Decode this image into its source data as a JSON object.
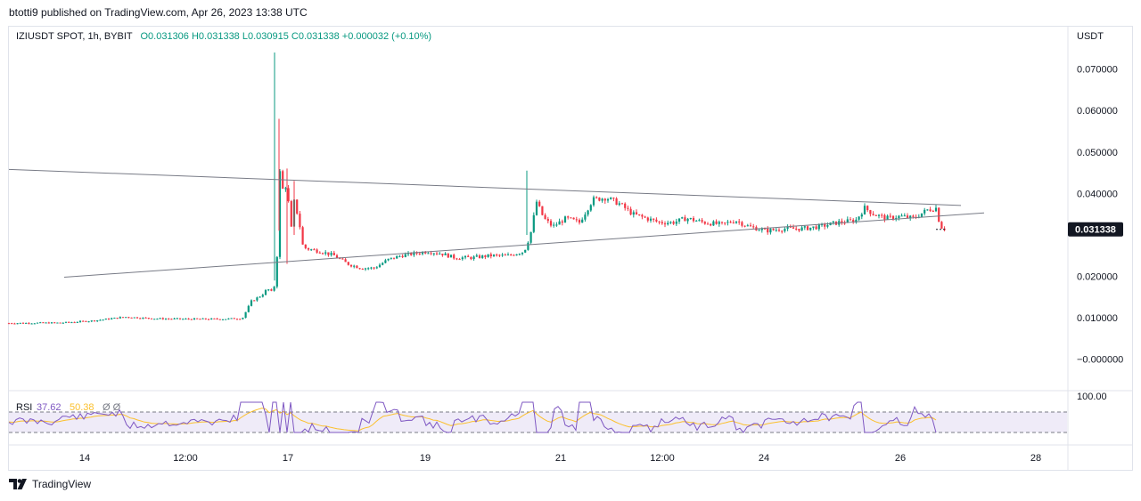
{
  "header": {
    "publish_text": "btotti9 published on TradingView.com, Apr 26, 2023 13:38 UTC"
  },
  "legend": {
    "symbol": "IZIUSDT SPOT, 1h, BYBIT",
    "ohlc": "O0.031306  H0.031338  L0.030915  C0.031338  +0.000032 (+0.10%)"
  },
  "footer": {
    "brand": "TradingView"
  },
  "colors": {
    "up": "#089981",
    "down": "#f23645",
    "rsi": "#7e57c2",
    "rsi_ma": "#fbc02d",
    "price_tag": "#131722"
  },
  "chart_data": {
    "type": "candlestick",
    "currency_label": "USDT",
    "y_tick_labels": [
      "0.070000",
      "0.060000",
      "0.050000",
      "0.040000",
      "0.020000",
      "0.010000",
      "−0.000000"
    ],
    "y_tick_values": [
      0.07,
      0.06,
      0.05,
      0.04,
      0.02,
      0.01,
      0.0
    ],
    "ylim": [
      -0.0035,
      0.074
    ],
    "x_tick_labels": [
      "14",
      "12:00",
      "17",
      "19",
      "21",
      "12:00",
      "24",
      "26",
      "28"
    ],
    "last_price": 0.031338,
    "last_price_label": "0.031338",
    "price_path": [
      [
        0,
        0.0087
      ],
      [
        60,
        0.0088
      ],
      [
        95,
        0.0093
      ],
      [
        130,
        0.0102
      ],
      [
        165,
        0.0098
      ],
      [
        200,
        0.0097
      ],
      [
        240,
        0.0097
      ],
      [
        262,
        0.0099
      ],
      [
        272,
        0.014
      ],
      [
        284,
        0.0155
      ],
      [
        290,
        0.017
      ],
      [
        296,
        0.016
      ],
      [
        300,
        0.02
      ],
      [
        304,
        0.045
      ],
      [
        308,
        0.04
      ],
      [
        312,
        0.043
      ],
      [
        316,
        0.03
      ],
      [
        320,
        0.038
      ],
      [
        325,
        0.034
      ],
      [
        330,
        0.027
      ],
      [
        338,
        0.0265
      ],
      [
        350,
        0.026
      ],
      [
        365,
        0.025
      ],
      [
        380,
        0.023
      ],
      [
        395,
        0.022
      ],
      [
        410,
        0.022
      ],
      [
        425,
        0.024
      ],
      [
        440,
        0.025
      ],
      [
        455,
        0.0255
      ],
      [
        470,
        0.026
      ],
      [
        485,
        0.0255
      ],
      [
        500,
        0.0245
      ],
      [
        520,
        0.0245
      ],
      [
        540,
        0.025
      ],
      [
        560,
        0.025
      ],
      [
        578,
        0.026
      ],
      [
        585,
        0.03
      ],
      [
        592,
        0.038
      ],
      [
        600,
        0.034
      ],
      [
        610,
        0.032
      ],
      [
        625,
        0.034
      ],
      [
        640,
        0.033
      ],
      [
        655,
        0.0385
      ],
      [
        670,
        0.039
      ],
      [
        685,
        0.0375
      ],
      [
        700,
        0.035
      ],
      [
        715,
        0.034
      ],
      [
        730,
        0.033
      ],
      [
        745,
        0.033
      ],
      [
        760,
        0.034
      ],
      [
        780,
        0.033
      ],
      [
        800,
        0.0325
      ],
      [
        815,
        0.0335
      ],
      [
        830,
        0.032
      ],
      [
        850,
        0.031
      ],
      [
        870,
        0.0315
      ],
      [
        890,
        0.0315
      ],
      [
        910,
        0.032
      ],
      [
        930,
        0.033
      ],
      [
        950,
        0.0335
      ],
      [
        960,
        0.0365
      ],
      [
        970,
        0.035
      ],
      [
        985,
        0.034
      ],
      [
        1000,
        0.0345
      ],
      [
        1015,
        0.034
      ],
      [
        1030,
        0.036
      ],
      [
        1040,
        0.0365
      ],
      [
        1045,
        0.032
      ],
      [
        1052,
        0.0313
      ]
    ],
    "triangle_lines": [
      {
        "from": [
          0,
          0.0458
        ],
        "to": [
          1068,
          0.0371
        ]
      },
      {
        "from": [
          62,
          0.0198
        ],
        "to": [
          1094,
          0.0353
        ]
      }
    ],
    "rsi": {
      "label": "RSI",
      "value": "37.62",
      "ma_value": "50.38",
      "extra": "Ø  Ø",
      "upper_label": "100.00",
      "bands": [
        70,
        30
      ]
    }
  }
}
